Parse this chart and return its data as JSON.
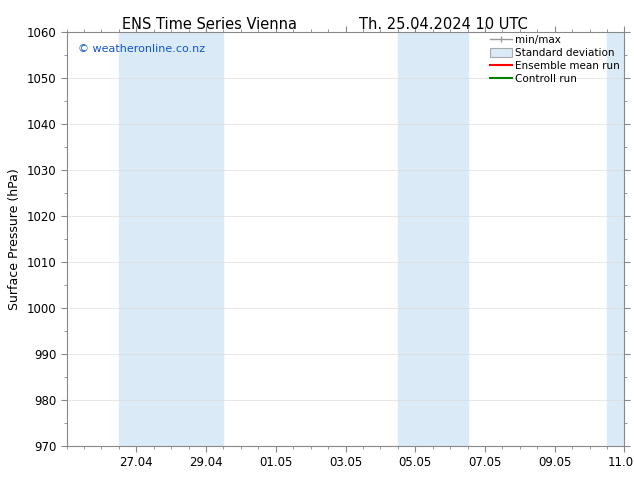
{
  "title_left": "ENS Time Series Vienna",
  "title_right": "Th. 25.04.2024 10 UTC",
  "ylabel": "Surface Pressure (hPa)",
  "ylim": [
    970,
    1060
  ],
  "yticks": [
    970,
    980,
    990,
    1000,
    1010,
    1020,
    1030,
    1040,
    1050,
    1060
  ],
  "xlim": [
    0,
    16
  ],
  "xtick_labels": [
    "27.04",
    "29.04",
    "01.05",
    "03.05",
    "05.05",
    "07.05",
    "09.05",
    "11.05"
  ],
  "xtick_positions": [
    2,
    4,
    6,
    8,
    10,
    12,
    14,
    16
  ],
  "shaded_bands": [
    {
      "x_start": 1.5,
      "x_end": 4.5
    },
    {
      "x_start": 9.5,
      "x_end": 11.5
    },
    {
      "x_start": 15.5,
      "x_end": 16.0
    }
  ],
  "shade_color": "#daeaf6",
  "watermark_text": "© weatheronline.co.nz",
  "watermark_color": "#1155cc",
  "legend_items": [
    {
      "label": "min/max",
      "type": "errorbar",
      "color": "#999999"
    },
    {
      "label": "Standard deviation",
      "type": "patch",
      "facecolor": "#daeaf6",
      "edgecolor": "#aaaaaa"
    },
    {
      "label": "Ensemble mean run",
      "type": "line",
      "color": "red",
      "linewidth": 1.5
    },
    {
      "label": "Controll run",
      "type": "line",
      "color": "green",
      "linewidth": 1.5
    }
  ],
  "fig_bg_color": "#ffffff",
  "plot_bg_color": "#ffffff",
  "grid_color": "#dddddd",
  "spine_color": "#888888",
  "title_fontsize": 10.5,
  "ylabel_fontsize": 9,
  "tick_fontsize": 8.5,
  "watermark_fontsize": 8
}
